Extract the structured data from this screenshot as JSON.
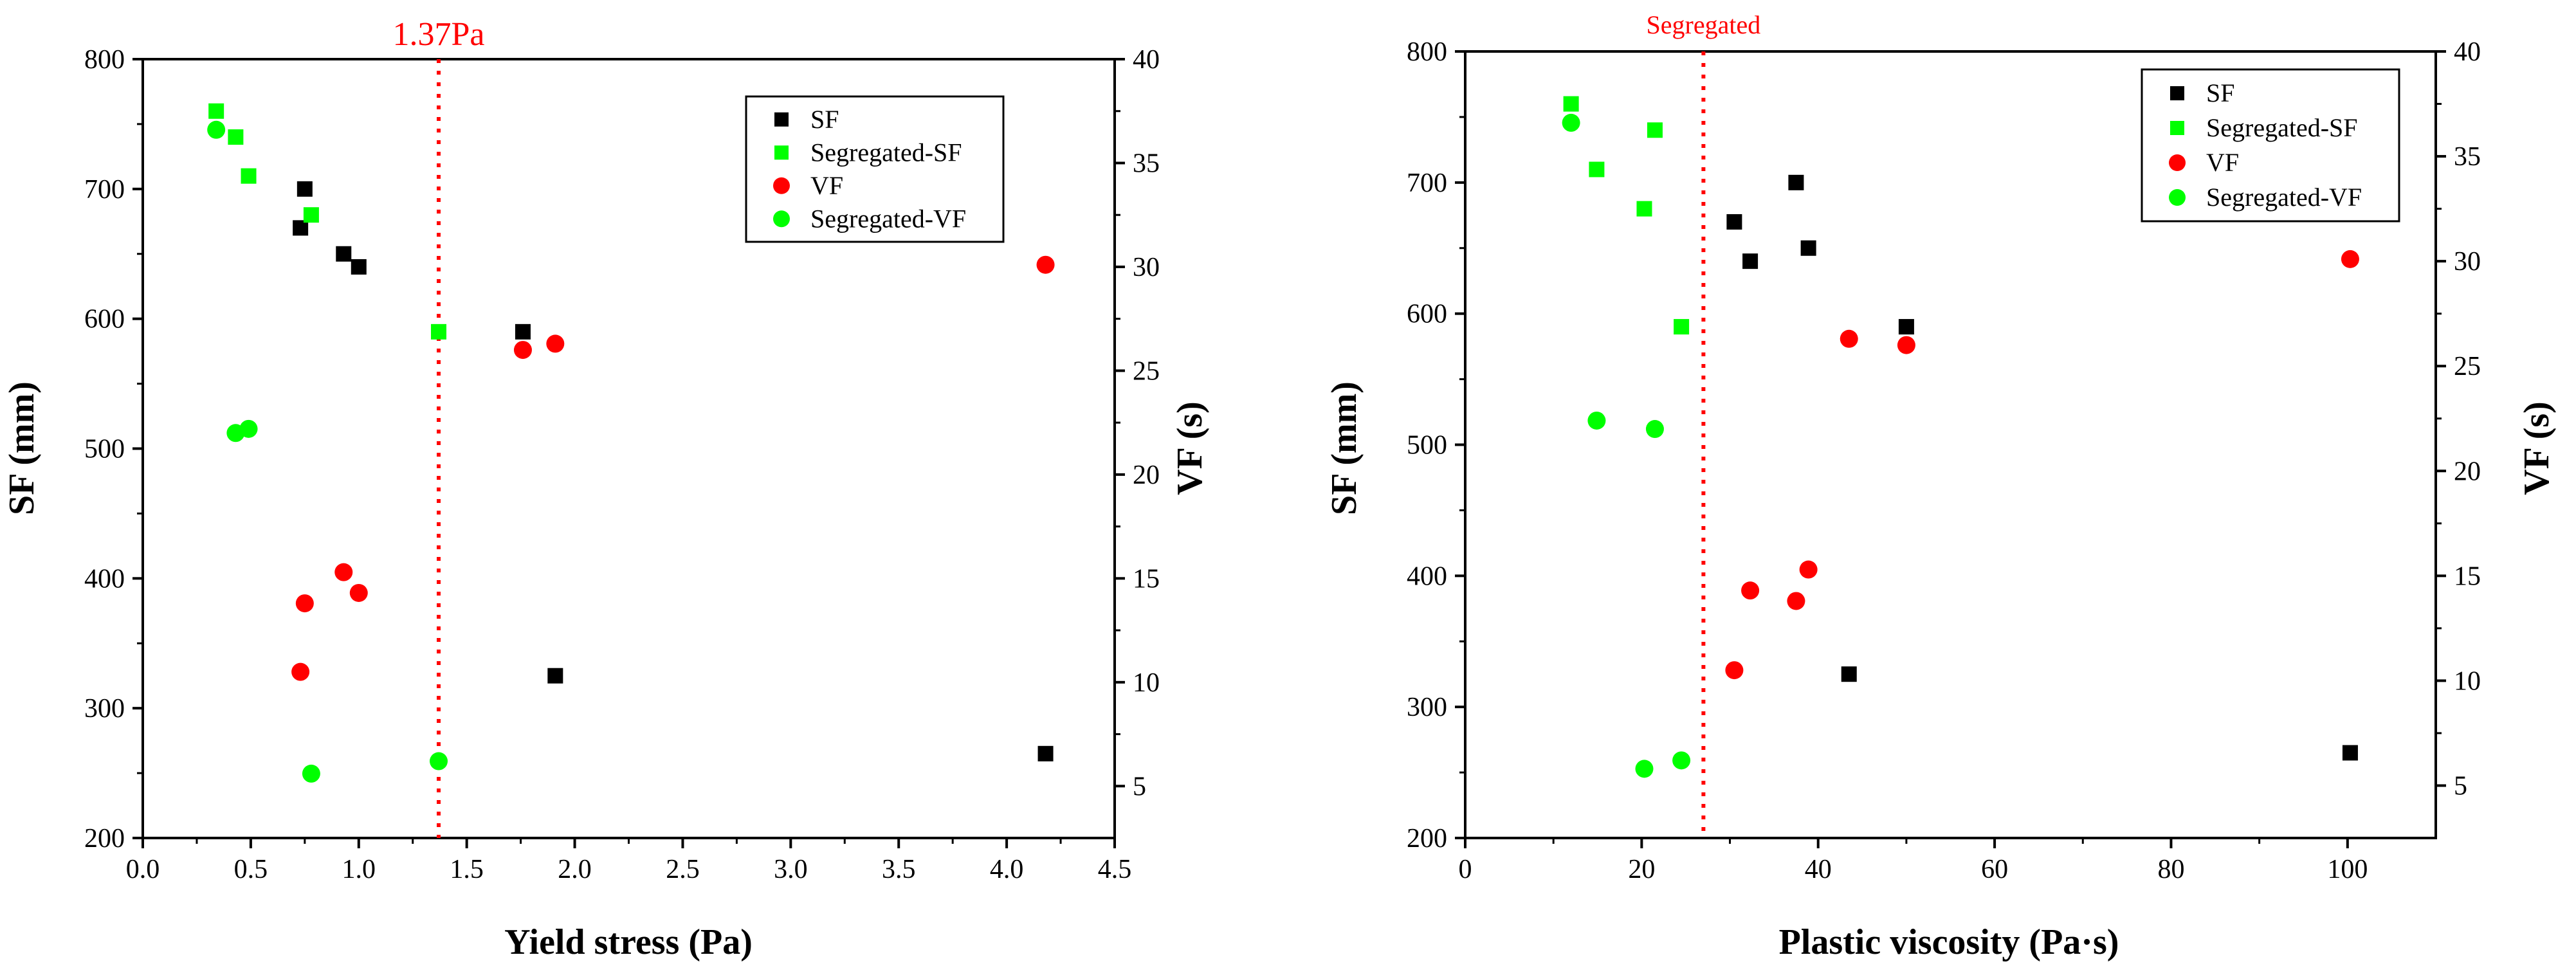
{
  "chart_data": [
    {
      "type": "scatter",
      "id": "left",
      "xlabel": "Yield stress (Pa)",
      "ylabel": "SF (mm)",
      "y2label": "VF (s)",
      "xlim": [
        0.0,
        4.5
      ],
      "xticks": [
        "0.0",
        "0.5",
        "1.0",
        "1.5",
        "2.0",
        "2.5",
        "3.0",
        "3.5",
        "4.0",
        "4.5"
      ],
      "ylim": [
        200,
        800
      ],
      "yticks": [
        "200",
        "300",
        "400",
        "500",
        "600",
        "700",
        "800"
      ],
      "y2lim": [
        2.5,
        40
      ],
      "y2ticks": [
        "5",
        "10",
        "15",
        "20",
        "25",
        "30",
        "35",
        "40"
      ],
      "reference_line": {
        "x": 1.37,
        "label": "1.37Pa",
        "color": "#ff0000"
      },
      "legend_position": "top-right",
      "series": [
        {
          "name": "SF",
          "axis": "left",
          "marker": "square",
          "color": "#000000",
          "points": [
            [
              0.75,
              700
            ],
            [
              0.73,
              670
            ],
            [
              0.93,
              650
            ],
            [
              1.0,
              640
            ],
            [
              1.76,
              590
            ],
            [
              1.91,
              325
            ],
            [
              4.18,
              265
            ]
          ]
        },
        {
          "name": "Segregated-SF",
          "axis": "left",
          "marker": "square",
          "color": "#00ff00",
          "points": [
            [
              0.34,
              760
            ],
            [
              0.43,
              740
            ],
            [
              0.49,
              710
            ],
            [
              0.78,
              680
            ],
            [
              1.37,
              590
            ]
          ]
        },
        {
          "name": "VF",
          "axis": "right",
          "marker": "circle",
          "color": "#ff0000",
          "points": [
            [
              0.73,
              10.5
            ],
            [
              0.75,
              13.8
            ],
            [
              0.93,
              15.3
            ],
            [
              1.0,
              14.3
            ],
            [
              1.76,
              26.0
            ],
            [
              1.91,
              26.3
            ],
            [
              4.18,
              30.1
            ]
          ]
        },
        {
          "name": "Segregated-VF",
          "axis": "right",
          "marker": "circle",
          "color": "#00ff00",
          "points": [
            [
              0.34,
              36.6
            ],
            [
              0.43,
              22.0
            ],
            [
              0.49,
              22.2
            ],
            [
              0.78,
              5.6
            ],
            [
              1.37,
              6.2
            ]
          ]
        }
      ]
    },
    {
      "type": "scatter",
      "id": "right",
      "xlabel": "Plastic viscosity (Pa·s)",
      "ylabel": "SF (mm)",
      "y2label": "VF (s)",
      "xlim": [
        0,
        110
      ],
      "xticks": [
        "0",
        "20",
        "40",
        "60",
        "80",
        "100"
      ],
      "ylim": [
        200,
        800
      ],
      "yticks": [
        "200",
        "300",
        "400",
        "500",
        "600",
        "700",
        "800"
      ],
      "y2lim": [
        2.5,
        40
      ],
      "y2ticks": [
        "5",
        "10",
        "15",
        "20",
        "25",
        "30",
        "35",
        "40"
      ],
      "reference_line": {
        "x": 27,
        "label": "Segregated",
        "color": "#ff0000"
      },
      "legend_position": "top-right",
      "series": [
        {
          "name": "SF",
          "axis": "left",
          "marker": "square",
          "color": "#000000",
          "points": [
            [
              30.5,
              670
            ],
            [
              32.3,
              640
            ],
            [
              37.5,
              700
            ],
            [
              38.9,
              650
            ],
            [
              43.5,
              325
            ],
            [
              50.0,
              590
            ],
            [
              100.3,
              265
            ]
          ]
        },
        {
          "name": "Segregated-SF",
          "axis": "left",
          "marker": "square",
          "color": "#00ff00",
          "points": [
            [
              12.0,
              760
            ],
            [
              14.9,
              710
            ],
            [
              20.3,
              680
            ],
            [
              21.5,
              740
            ],
            [
              24.5,
              590
            ]
          ]
        },
        {
          "name": "VF",
          "axis": "right",
          "marker": "circle",
          "color": "#ff0000",
          "points": [
            [
              30.5,
              10.5
            ],
            [
              32.3,
              14.3
            ],
            [
              37.5,
              13.8
            ],
            [
              38.9,
              15.3
            ],
            [
              43.5,
              26.3
            ],
            [
              50.0,
              26.0
            ],
            [
              100.3,
              30.1
            ]
          ]
        },
        {
          "name": "Segregated-VF",
          "axis": "right",
          "marker": "circle",
          "color": "#00ff00",
          "points": [
            [
              12.0,
              36.6
            ],
            [
              14.9,
              22.4
            ],
            [
              20.3,
              5.8
            ],
            [
              21.5,
              22.0
            ],
            [
              24.5,
              6.2
            ]
          ]
        }
      ]
    }
  ]
}
